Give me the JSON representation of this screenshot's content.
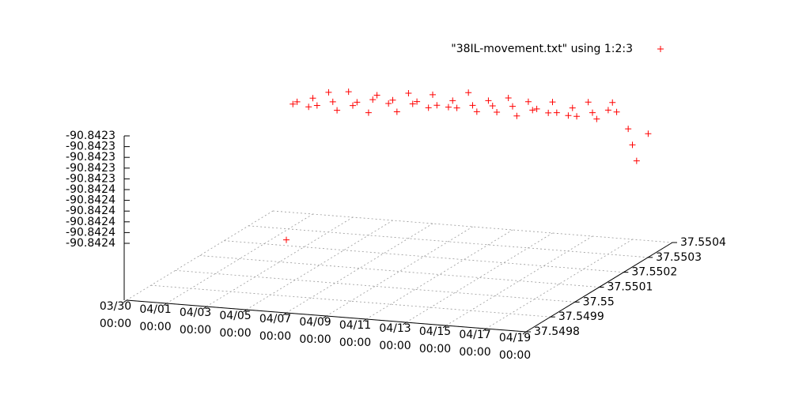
{
  "chart_data": {
    "type": "scatter3d",
    "legend_position": "top-right",
    "grid": true,
    "xlim": [
      "03/30 00:00",
      "04/19 00:00"
    ],
    "xticks": [
      "03/30 00:00",
      "04/01 00:00",
      "04/03 00:00",
      "04/05 00:00",
      "04/07 00:00",
      "04/09 00:00",
      "04/11 00:00",
      "04/13 00:00",
      "04/15 00:00",
      "04/17 00:00",
      "04/19 00:00"
    ],
    "ylim": [
      37.5498,
      37.5504
    ],
    "yticks": [
      37.5498,
      37.5499,
      37.55,
      37.5501,
      37.5502,
      37.5503,
      37.5504
    ],
    "zlim": [
      -90.8424,
      -90.8423
    ],
    "zticks": [
      {
        "value": -90.8423,
        "label": "-90.8423"
      },
      {
        "value": -90.84231,
        "label": "-90.8423"
      },
      {
        "value": -90.84232,
        "label": "-90.8423"
      },
      {
        "value": -90.84233,
        "label": "-90.8423"
      },
      {
        "value": -90.84234,
        "label": "-90.8423"
      },
      {
        "value": -90.84235,
        "label": "-90.8424"
      },
      {
        "value": -90.84236,
        "label": "-90.8424"
      },
      {
        "value": -90.84237,
        "label": "-90.8424"
      },
      {
        "value": -90.84238,
        "label": "-90.8424"
      },
      {
        "value": -90.84239,
        "label": "-90.8424"
      },
      {
        "value": -90.8424,
        "label": "-90.8424"
      }
    ],
    "series": [
      {
        "name": "\"38IL-movement.txt\" using 1:2:3",
        "color": "#ff0000",
        "x": [
          "03/31 00:00",
          "03/31 08:00",
          "03/31 16:00",
          "04/01 00:00",
          "04/01 08:00",
          "04/01 16:00",
          "04/02 00:00",
          "04/02 08:00",
          "04/02 16:00",
          "04/03 00:00",
          "04/03 08:00",
          "04/03 16:00",
          "04/04 00:00",
          "04/04 08:00",
          "04/04 16:00",
          "04/05 00:00",
          "04/05 08:00",
          "04/05 16:00",
          "04/06 00:00",
          "04/06 08:00",
          "04/06 16:00",
          "04/07 00:00",
          "04/07 08:00",
          "04/07 16:00",
          "04/08 00:00",
          "04/08 08:00",
          "04/08 16:00",
          "04/09 00:00",
          "04/09 08:00",
          "04/09 16:00",
          "04/10 00:00",
          "04/10 08:00",
          "04/10 16:00",
          "04/11 00:00",
          "04/11 08:00",
          "04/11 16:00",
          "04/12 00:00",
          "04/12 08:00",
          "04/12 16:00",
          "04/13 00:00",
          "04/13 08:00",
          "04/13 16:00",
          "04/14 00:00",
          "04/14 08:00",
          "04/14 16:00",
          "04/15 00:00",
          "04/15 08:00",
          "04/15 16:00",
          "04/16 00:00",
          "04/16 08:00",
          "04/16 16:00",
          "04/17 00:00",
          "04/17 08:00",
          "04/17 16:00",
          "04/07 00:00"
        ],
        "y": [
          37.5504,
          37.55039,
          37.55041,
          37.5504,
          37.55039,
          37.55041,
          37.5504,
          37.55039,
          37.55041,
          37.5504,
          37.55039,
          37.55041,
          37.5504,
          37.55039,
          37.55041,
          37.5504,
          37.55039,
          37.55041,
          37.5504,
          37.55039,
          37.55041,
          37.5504,
          37.55039,
          37.55041,
          37.5504,
          37.55039,
          37.55041,
          37.5504,
          37.55039,
          37.55041,
          37.5504,
          37.55039,
          37.55041,
          37.5504,
          37.55039,
          37.55041,
          37.5504,
          37.55039,
          37.55041,
          37.5504,
          37.55039,
          37.55041,
          37.5504,
          37.55039,
          37.55041,
          37.5504,
          37.55039,
          37.55041,
          37.5504,
          37.55039,
          37.55041,
          37.5504,
          37.55039,
          37.55041,
          37.5498
        ],
        "z": [
          -90.842352,
          -90.842348,
          -90.842355,
          -90.842345,
          -90.84235,
          -90.84234,
          -90.842347,
          -90.842353,
          -90.842338,
          -90.842349,
          -90.842344,
          -90.842356,
          -90.842342,
          -90.842336,
          -90.842346,
          -90.842341,
          -90.84235,
          -90.842335,
          -90.842343,
          -90.842339,
          -90.842347,
          -90.842333,
          -90.842341,
          -90.842345,
          -90.842337,
          -90.842342,
          -90.84233,
          -90.84234,
          -90.842344,
          -90.842336,
          -90.842339,
          -90.842343,
          -90.842332,
          -90.842338,
          -90.842345,
          -90.842334,
          -90.84234,
          -90.842337,
          -90.842343,
          -90.842331,
          -90.842339,
          -90.842344,
          -90.842335,
          -90.842341,
          -90.84233,
          -90.842338,
          -90.842342,
          -90.842336,
          -90.842327,
          -90.842334,
          -90.842352,
          -90.842365,
          -90.842378,
          -90.842355,
          -90.842385
        ]
      }
    ]
  }
}
